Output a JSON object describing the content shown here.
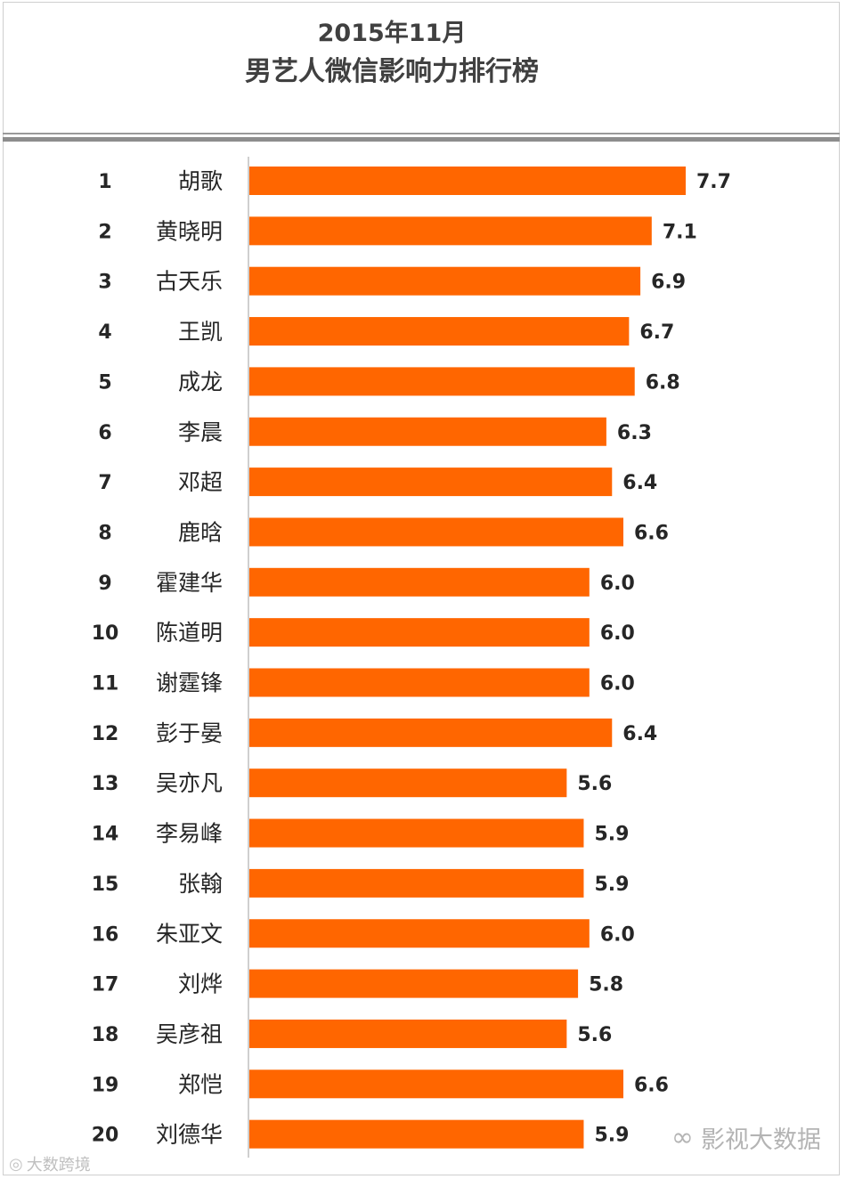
{
  "header": {
    "title_line1": "2015年11月",
    "title_line2": "男艺人微信影响力排行榜"
  },
  "chart_data": {
    "type": "bar",
    "orientation": "horizontal",
    "ranks": [
      "1",
      "2",
      "3",
      "4",
      "5",
      "6",
      "7",
      "8",
      "9",
      "10",
      "11",
      "12",
      "13",
      "14",
      "15",
      "16",
      "17",
      "18",
      "19",
      "20"
    ],
    "categories": [
      "胡歌",
      "黄晓明",
      "古天乐",
      "王凯",
      "成龙",
      "李晨",
      "邓超",
      "鹿晗",
      "霍建华",
      "陈道明",
      "谢霆锋",
      "彭于晏",
      "吴亦凡",
      "李易峰",
      "张翰",
      "朱亚文",
      "刘烨",
      "吴彦祖",
      "郑恺",
      "刘德华"
    ],
    "values": [
      7.7,
      7.1,
      6.9,
      6.7,
      6.8,
      6.3,
      6.4,
      6.6,
      6.0,
      6.0,
      6.0,
      6.4,
      5.6,
      5.9,
      5.9,
      6.0,
      5.8,
      5.6,
      6.6,
      5.9
    ],
    "value_labels": [
      "7.7",
      "7.1",
      "6.9",
      "6.7",
      "6.8",
      "6.3",
      "6.4",
      "6.6",
      "6.0",
      "6.0",
      "6.0",
      "6.4",
      "5.6",
      "5.9",
      "5.9",
      "6.0",
      "5.8",
      "5.6",
      "6.6",
      "5.9"
    ],
    "xlim": [
      0,
      7.7
    ],
    "bar_color": "#ff6600",
    "axis_color": "#bfbfbf",
    "grid": false,
    "legend": "none"
  },
  "watermarks": {
    "left_text": "大数跨境",
    "left_icon": "weibo-icon",
    "right_text": "影视大数据",
    "right_icon": "wechat-icon"
  }
}
